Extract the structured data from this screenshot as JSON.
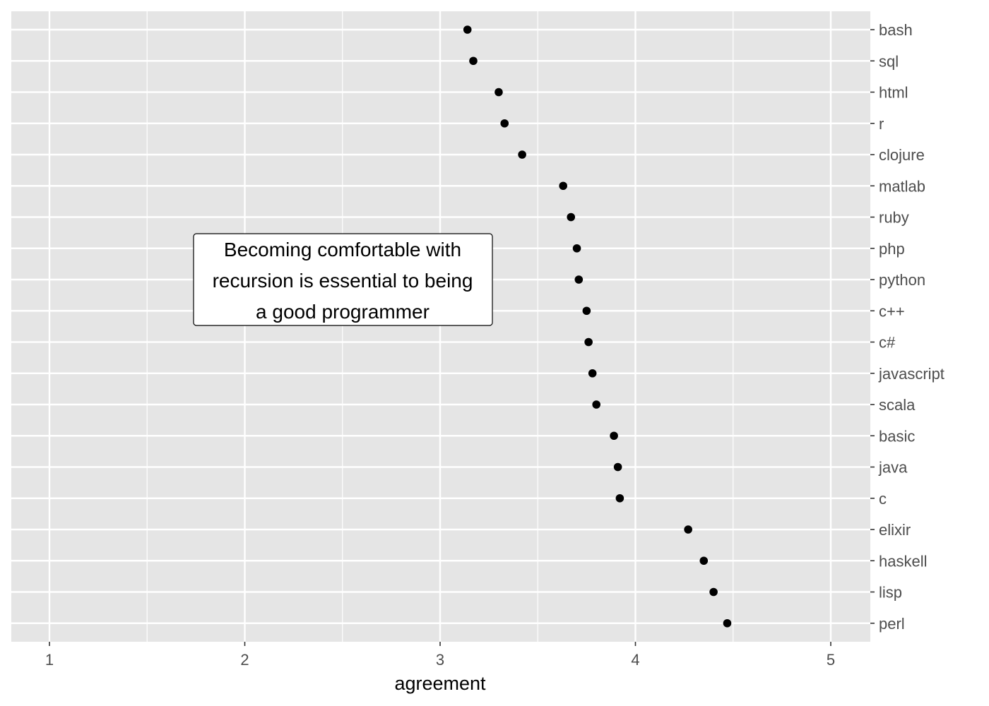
{
  "chart_data": {
    "type": "scatter",
    "title": "",
    "xlabel": "agreement",
    "ylabel": "",
    "xlim": [
      0.8,
      5.2
    ],
    "x_ticks": [
      1,
      2,
      3,
      4,
      5
    ],
    "x_tick_labels": [
      "1",
      "2",
      "3",
      "4",
      "5"
    ],
    "categories": [
      "bash",
      "sql",
      "html",
      "r",
      "clojure",
      "matlab",
      "ruby",
      "php",
      "python",
      "c++",
      "c#",
      "javascript",
      "scala",
      "basic",
      "java",
      "c",
      "elixir",
      "haskell",
      "lisp",
      "perl"
    ],
    "values": [
      3.14,
      3.17,
      3.3,
      3.33,
      3.42,
      3.63,
      3.67,
      3.7,
      3.71,
      3.75,
      3.76,
      3.78,
      3.8,
      3.89,
      3.91,
      3.92,
      4.27,
      4.35,
      4.4,
      4.47
    ],
    "annotation": {
      "lines": [
        "Becoming comfortable with",
        "recursion is essential to being",
        "a good programmer"
      ]
    },
    "grid": true,
    "legend": "none",
    "colors": {
      "panel_background": "#e5e5e5",
      "grid_line": "#ffffff",
      "point": "#000000",
      "tick_label": "#4d4d4d",
      "tick_mark": "#333333"
    }
  }
}
